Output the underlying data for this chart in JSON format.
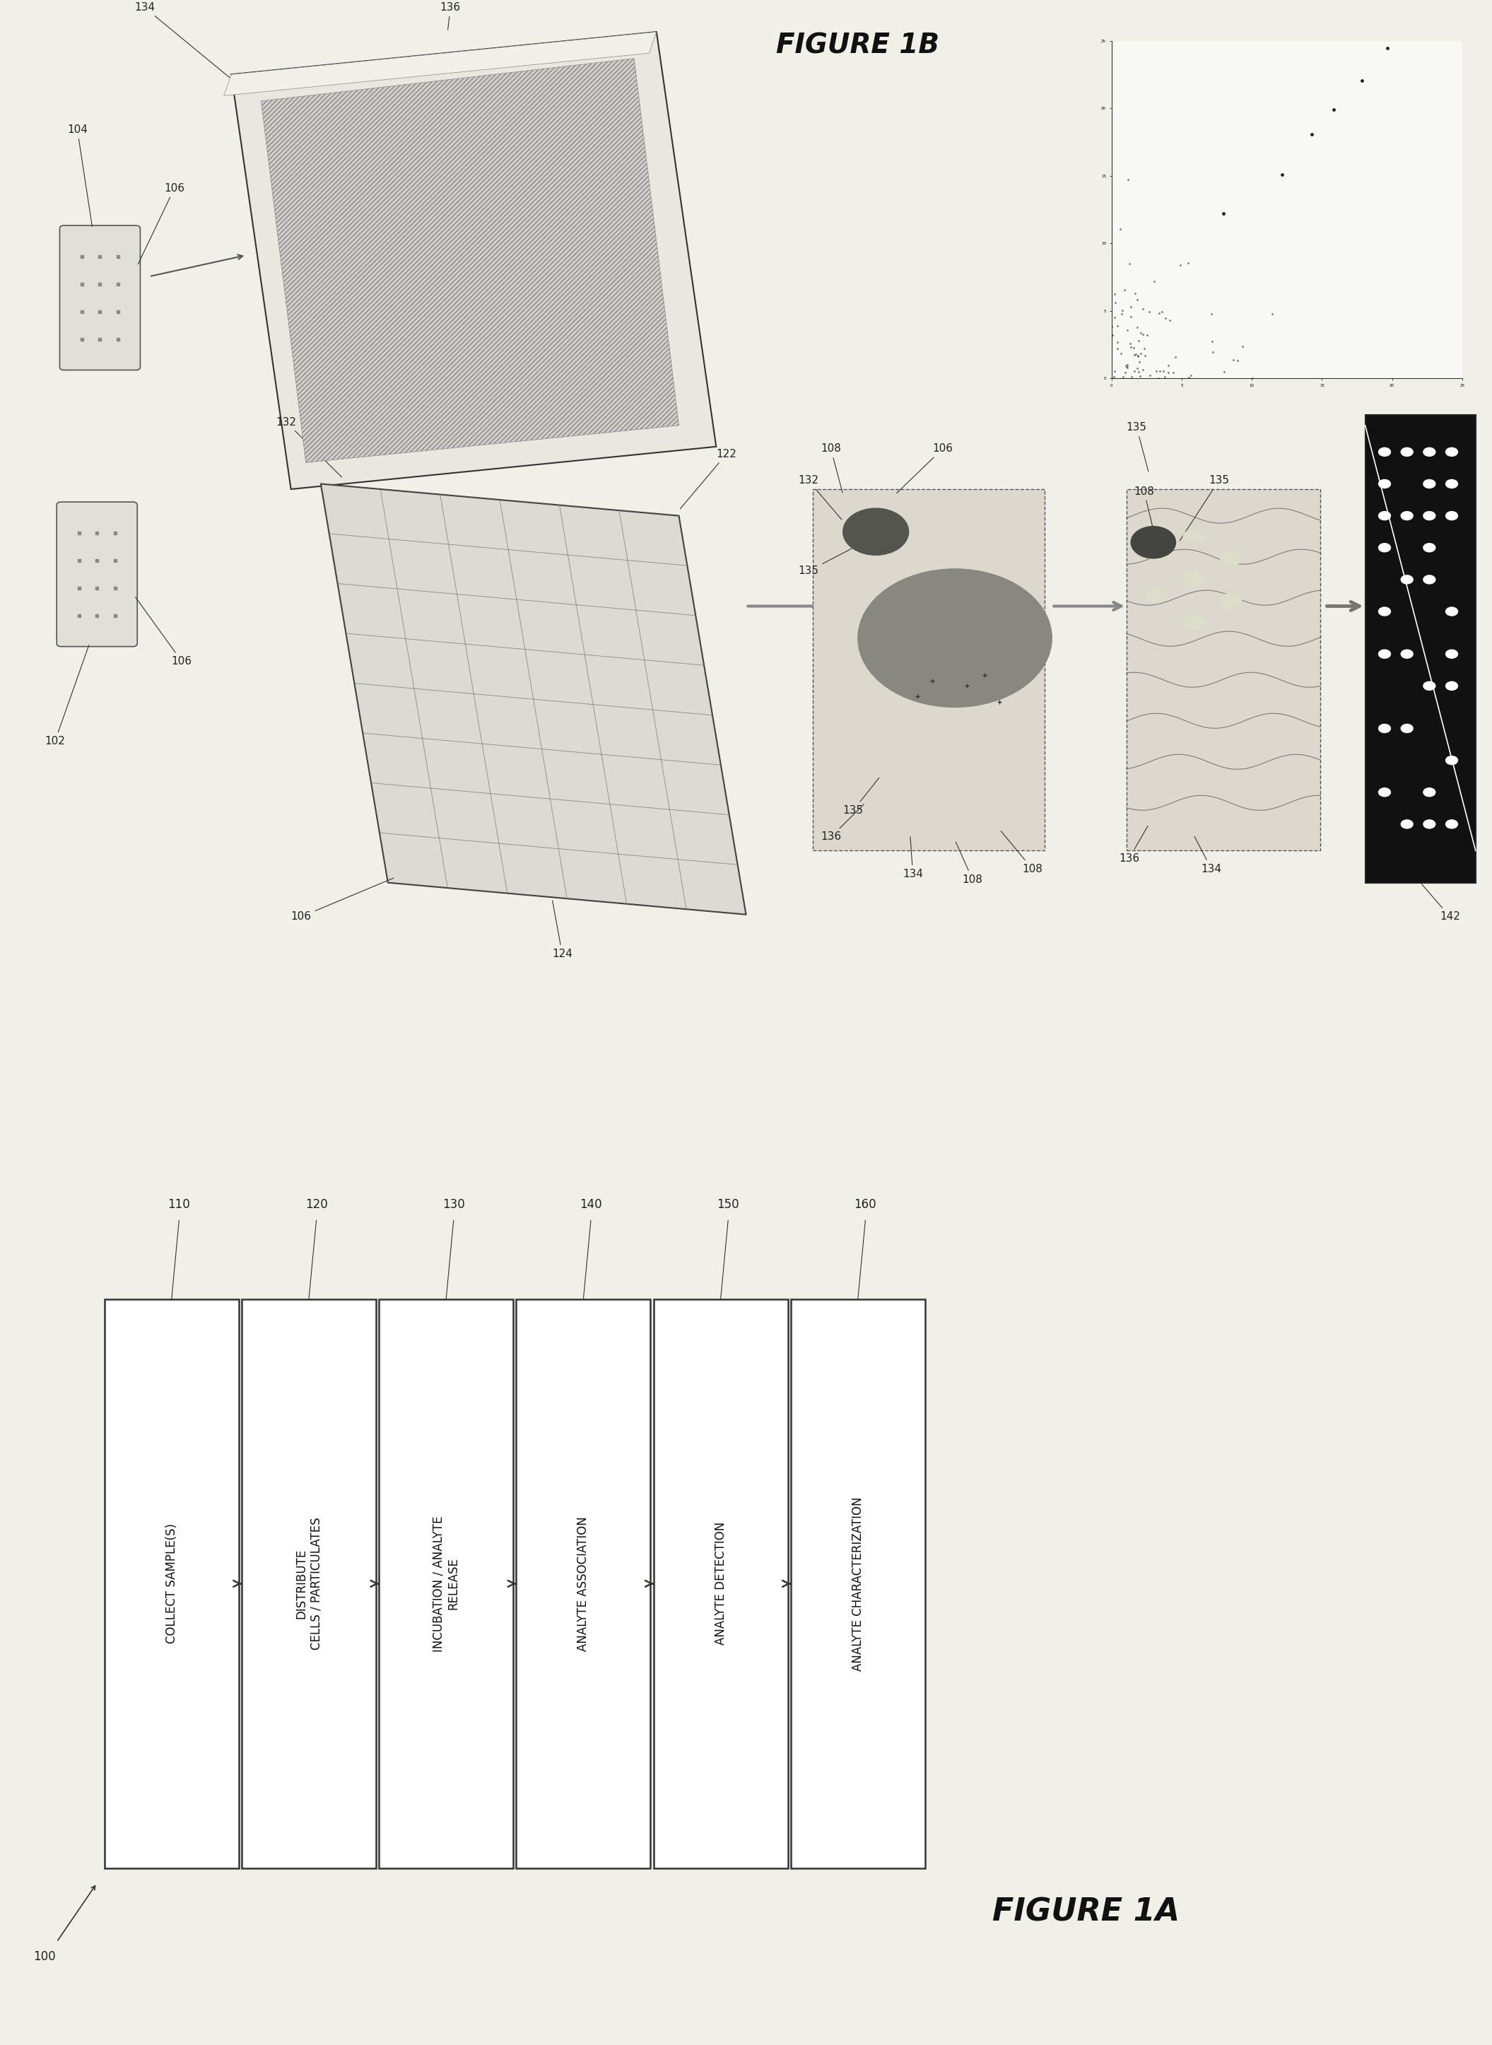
{
  "bg_color": "#f0efe8",
  "figure_title_a": "FIGURE 1A",
  "figure_title_b": "FIGURE 1B",
  "flowchart_steps": [
    {
      "id": "110",
      "label": "COLLECT SAMPLE(S)"
    },
    {
      "id": "120",
      "label": "DISTRIBUTE\nCELLS / PARTICULATES"
    },
    {
      "id": "130",
      "label": "INCUBATION / ANALYTE\nRELEASE"
    },
    {
      "id": "140",
      "label": "ANALYTE ASSOCIATION"
    },
    {
      "id": "150",
      "label": "ANALYTE DETECTION"
    },
    {
      "id": "160",
      "label": "ANALYTE CHARACTERIZATION"
    }
  ],
  "label_color": "#222222",
  "box_color": "#ffffff",
  "box_edge_color": "#333333"
}
